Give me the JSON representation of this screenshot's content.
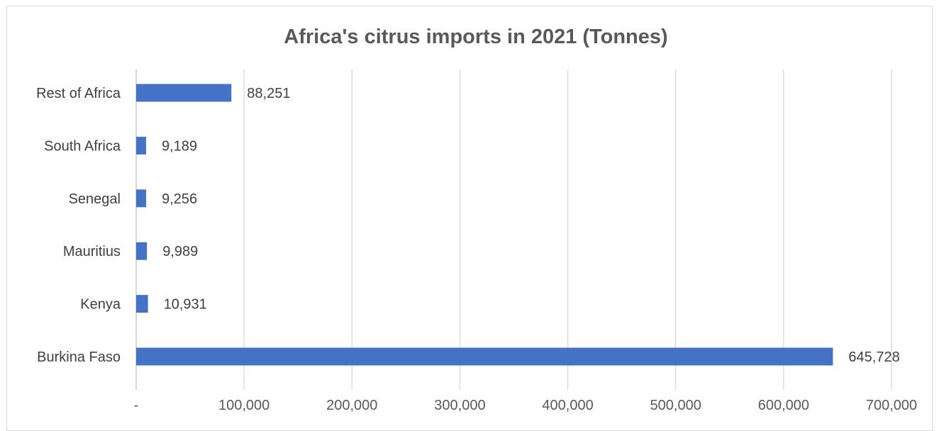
{
  "chart_data": {
    "type": "bar",
    "orientation": "horizontal",
    "title": "Africa's citrus imports in 2021 (Tonnes)",
    "categories": [
      "Burkina Faso",
      "Kenya",
      "Mauritius",
      "Senegal",
      "South Africa",
      "Rest of Africa"
    ],
    "values": [
      645728,
      10931,
      9989,
      9256,
      9189,
      88251
    ],
    "data_labels": [
      "645,728",
      "10,931",
      "9,989",
      "9,256",
      "9,189",
      "88,251"
    ],
    "xlim": [
      0,
      700000
    ],
    "x_ticks": [
      0,
      100000,
      200000,
      300000,
      400000,
      500000,
      600000,
      700000
    ],
    "x_tick_labels": [
      "-",
      "100,000",
      "200,000",
      "300,000",
      "400,000",
      "500,000",
      "600,000",
      "700,000"
    ],
    "xlabel": "",
    "ylabel": "",
    "grid": true,
    "legend": false,
    "bar_color": "#4472c4"
  }
}
